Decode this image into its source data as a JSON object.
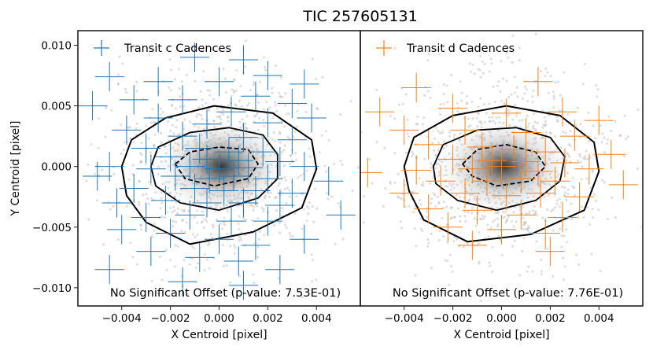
{
  "title": "TIC 257605131",
  "ylabel": "Y Centroid [pixel]",
  "chart_data": [
    {
      "type": "scatter",
      "panel": "left",
      "xlabel": "X Centroid [pixel]",
      "ylabel": "Y Centroid [pixel]",
      "xlim": [
        -0.0058,
        0.0058
      ],
      "ylim": [
        -0.0115,
        0.0112
      ],
      "x_ticks": [
        -0.004,
        -0.002,
        0.0,
        0.002,
        0.004
      ],
      "x_tick_labels": [
        "−0.004",
        "−0.002",
        "0.000",
        "0.002",
        "0.004"
      ],
      "y_ticks": [
        -0.01,
        -0.005,
        0.0,
        0.005,
        0.01
      ],
      "y_tick_labels": [
        "−0.010",
        "−0.005",
        "0.000",
        "0.005",
        "0.010"
      ],
      "legend": {
        "label": "Transit c Cadences",
        "color": "#1f77b4",
        "position": "top-left"
      },
      "annotation": "No Significant Offset (p-value: 7.53E-01)",
      "series_color": "#1f77b4",
      "contour_levels": [
        [
          [
            -0.004,
            0.0
          ],
          [
            -0.0036,
            0.0022
          ],
          [
            -0.0022,
            0.004
          ],
          [
            -0.0002,
            0.005
          ],
          [
            0.0022,
            0.0044
          ],
          [
            0.0038,
            0.0022
          ],
          [
            0.004,
            -0.0002
          ],
          [
            0.0034,
            -0.0034
          ],
          [
            0.0014,
            -0.0054
          ],
          [
            -0.0012,
            -0.0064
          ],
          [
            -0.003,
            -0.0046
          ],
          [
            -0.0038,
            -0.0024
          ]
        ],
        [
          [
            -0.0028,
            0.0
          ],
          [
            -0.0025,
            0.0016
          ],
          [
            -0.0012,
            0.0028
          ],
          [
            0.0004,
            0.0032
          ],
          [
            0.0018,
            0.0026
          ],
          [
            0.0024,
            0.001
          ],
          [
            0.0024,
            -0.001
          ],
          [
            0.0016,
            -0.0026
          ],
          [
            0.0,
            -0.0036
          ],
          [
            -0.0016,
            -0.003
          ],
          [
            -0.0026,
            -0.0016
          ]
        ],
        [
          [
            -0.0018,
            0.0002
          ],
          [
            -0.0012,
            0.0012
          ],
          [
            0.0,
            0.0016
          ],
          [
            0.0012,
            0.0014
          ],
          [
            0.0016,
            0.0002
          ],
          [
            0.0012,
            -0.001
          ],
          [
            -0.0002,
            -0.0016
          ],
          [
            -0.0014,
            -0.001
          ]
        ]
      ],
      "points": [
        {
          "x": -0.001,
          "y": 0.009,
          "ex": 0.0006,
          "ey": 0.0012
        },
        {
          "x": 0.001,
          "y": 0.0088,
          "ex": 0.0006,
          "ey": 0.0012
        },
        {
          "x": -0.0045,
          "y": 0.0074,
          "ex": 0.0006,
          "ey": 0.0012
        },
        {
          "x": 0.002,
          "y": 0.0075,
          "ex": 0.0006,
          "ey": 0.0012
        },
        {
          "x": -0.0025,
          "y": 0.007,
          "ex": 0.0006,
          "ey": 0.0012
        },
        {
          "x": 0.0,
          "y": 0.007,
          "ex": 0.0006,
          "ey": 0.0012
        },
        {
          "x": 0.0035,
          "y": 0.0068,
          "ex": 0.0006,
          "ey": 0.0012
        },
        {
          "x": -0.0052,
          "y": 0.005,
          "ex": 0.0006,
          "ey": 0.0012
        },
        {
          "x": -0.0035,
          "y": 0.0055,
          "ex": 0.0006,
          "ey": 0.0012
        },
        {
          "x": -0.0015,
          "y": 0.0055,
          "ex": 0.0006,
          "ey": 0.0012
        },
        {
          "x": 0.0015,
          "y": 0.0058,
          "ex": 0.0006,
          "ey": 0.0012
        },
        {
          "x": 0.003,
          "y": 0.0052,
          "ex": 0.0006,
          "ey": 0.0012
        },
        {
          "x": 0.0005,
          "y": 0.0045,
          "ex": 0.0006,
          "ey": 0.0012
        },
        {
          "x": -0.0025,
          "y": 0.004,
          "ex": 0.0006,
          "ey": 0.0012
        },
        {
          "x": -0.0005,
          "y": 0.0035,
          "ex": 0.0006,
          "ey": 0.0012
        },
        {
          "x": 0.002,
          "y": 0.0036,
          "ex": 0.0006,
          "ey": 0.0012
        },
        {
          "x": 0.0038,
          "y": 0.004,
          "ex": 0.0006,
          "ey": 0.0012
        },
        {
          "x": -0.0038,
          "y": 0.003,
          "ex": 0.0006,
          "ey": 0.0012
        },
        {
          "x": -0.0015,
          "y": 0.0025,
          "ex": 0.0006,
          "ey": 0.0012
        },
        {
          "x": 0.001,
          "y": 0.0024,
          "ex": 0.0006,
          "ey": 0.0012
        },
        {
          "x": 0.003,
          "y": 0.0022,
          "ex": 0.0006,
          "ey": 0.0012
        },
        {
          "x": -0.003,
          "y": 0.0015,
          "ex": 0.0006,
          "ey": 0.0012
        },
        {
          "x": -0.0008,
          "y": 0.0015,
          "ex": 0.0006,
          "ey": 0.0012
        },
        {
          "x": 0.0004,
          "y": 0.0012,
          "ex": 0.0006,
          "ey": 0.0012
        },
        {
          "x": 0.0018,
          "y": 0.0012,
          "ex": 0.0006,
          "ey": 0.0012
        },
        {
          "x": -0.002,
          "y": 0.0008,
          "ex": 0.0006,
          "ey": 0.0012
        },
        {
          "x": -0.0005,
          "y": 0.0006,
          "ex": 0.0006,
          "ey": 0.0012
        },
        {
          "x": 0.0008,
          "y": 0.0005,
          "ex": 0.0006,
          "ey": 0.0012
        },
        {
          "x": 0.0025,
          "y": 0.0004,
          "ex": 0.0006,
          "ey": 0.0012
        },
        {
          "x": -0.0045,
          "y": 0.0,
          "ex": 0.0006,
          "ey": 0.0012
        },
        {
          "x": -0.0028,
          "y": -0.0002,
          "ex": 0.0006,
          "ey": 0.0012
        },
        {
          "x": -0.0012,
          "y": 0.0,
          "ex": 0.0006,
          "ey": 0.0012
        },
        {
          "x": 0.0,
          "y": -0.0002,
          "ex": 0.0006,
          "ey": 0.0012
        },
        {
          "x": 0.0012,
          "y": -0.0001,
          "ex": 0.0006,
          "ey": 0.0012
        },
        {
          "x": 0.0035,
          "y": 0.0,
          "ex": 0.0006,
          "ey": 0.0012
        },
        {
          "x": -0.005,
          "y": -0.0008,
          "ex": 0.0006,
          "ey": 0.0012
        },
        {
          "x": -0.0018,
          "y": -0.0008,
          "ex": 0.0006,
          "ey": 0.0012
        },
        {
          "x": -0.0004,
          "y": -0.001,
          "ex": 0.0006,
          "ey": 0.0012
        },
        {
          "x": 0.0006,
          "y": -0.0008,
          "ex": 0.0006,
          "ey": 0.0012
        },
        {
          "x": 0.002,
          "y": -0.001,
          "ex": 0.0006,
          "ey": 0.0012
        },
        {
          "x": 0.0045,
          "y": -0.0012,
          "ex": 0.0006,
          "ey": 0.0012
        },
        {
          "x": -0.0035,
          "y": -0.0018,
          "ex": 0.0006,
          "ey": 0.0012
        },
        {
          "x": -0.001,
          "y": -0.0018,
          "ex": 0.0006,
          "ey": 0.0012
        },
        {
          "x": 0.0002,
          "y": -0.002,
          "ex": 0.0006,
          "ey": 0.0012
        },
        {
          "x": 0.0015,
          "y": -0.002,
          "ex": 0.0006,
          "ey": 0.0012
        },
        {
          "x": 0.003,
          "y": -0.0022,
          "ex": 0.0006,
          "ey": 0.0012
        },
        {
          "x": -0.0042,
          "y": -0.003,
          "ex": 0.0006,
          "ey": 0.0012
        },
        {
          "x": -0.0022,
          "y": -0.0028,
          "ex": 0.0006,
          "ey": 0.0012
        },
        {
          "x": -0.0005,
          "y": -0.003,
          "ex": 0.0006,
          "ey": 0.0012
        },
        {
          "x": 0.001,
          "y": -0.003,
          "ex": 0.0006,
          "ey": 0.0012
        },
        {
          "x": 0.0025,
          "y": -0.0032,
          "ex": 0.0006,
          "ey": 0.0012
        },
        {
          "x": 0.005,
          "y": -0.004,
          "ex": 0.0006,
          "ey": 0.0012
        },
        {
          "x": -0.003,
          "y": -0.0042,
          "ex": 0.0006,
          "ey": 0.0012
        },
        {
          "x": -0.0012,
          "y": -0.004,
          "ex": 0.0006,
          "ey": 0.0012
        },
        {
          "x": 0.0005,
          "y": -0.0045,
          "ex": 0.0006,
          "ey": 0.0012
        },
        {
          "x": 0.002,
          "y": -0.0045,
          "ex": 0.0006,
          "ey": 0.0012
        },
        {
          "x": -0.004,
          "y": -0.0052,
          "ex": 0.0006,
          "ey": 0.0012
        },
        {
          "x": -0.002,
          "y": -0.0055,
          "ex": 0.0006,
          "ey": 0.0012
        },
        {
          "x": 0.0,
          "y": -0.006,
          "ex": 0.0006,
          "ey": 0.0012
        },
        {
          "x": 0.0015,
          "y": -0.0065,
          "ex": 0.0006,
          "ey": 0.0012
        },
        {
          "x": 0.0035,
          "y": -0.006,
          "ex": 0.0006,
          "ey": 0.0012
        },
        {
          "x": -0.0028,
          "y": -0.007,
          "ex": 0.0006,
          "ey": 0.0012
        },
        {
          "x": -0.0008,
          "y": -0.0075,
          "ex": 0.0006,
          "ey": 0.0012
        },
        {
          "x": 0.0008,
          "y": -0.0078,
          "ex": 0.0006,
          "ey": 0.0012
        },
        {
          "x": -0.0045,
          "y": -0.0085,
          "ex": 0.0006,
          "ey": 0.0012
        },
        {
          "x": 0.0025,
          "y": -0.0085,
          "ex": 0.0006,
          "ey": 0.0012
        },
        {
          "x": -0.0015,
          "y": -0.0095,
          "ex": 0.0006,
          "ey": 0.0012
        },
        {
          "x": 0.001,
          "y": -0.0098,
          "ex": 0.0006,
          "ey": 0.0012
        }
      ]
    },
    {
      "type": "scatter",
      "panel": "right",
      "xlabel": "X Centroid [pixel]",
      "xlim": [
        -0.0058,
        0.0058
      ],
      "ylim": [
        -0.0115,
        0.0112
      ],
      "x_ticks": [
        -0.004,
        -0.002,
        0.0,
        0.002,
        0.004
      ],
      "x_tick_labels": [
        "−0.004",
        "−0.002",
        "0.000",
        "0.002",
        "0.004"
      ],
      "legend": {
        "label": "Transit d Cadences",
        "color": "#ff7f0e",
        "position": "top-left"
      },
      "annotation": "No Significant Offset (p-value: 7.76E-01)",
      "series_color": "#ff7f0e",
      "contour_levels": [
        [
          [
            -0.004,
            0.0
          ],
          [
            -0.0036,
            0.0024
          ],
          [
            -0.002,
            0.0042
          ],
          [
            0.0002,
            0.005
          ],
          [
            0.0024,
            0.0042
          ],
          [
            0.0038,
            0.002
          ],
          [
            0.004,
            -0.0004
          ],
          [
            0.0034,
            -0.0036
          ],
          [
            0.0012,
            -0.0056
          ],
          [
            -0.0014,
            -0.0062
          ],
          [
            -0.0032,
            -0.0044
          ],
          [
            -0.0038,
            -0.002
          ]
        ],
        [
          [
            -0.0028,
            0.0
          ],
          [
            -0.0024,
            0.0018
          ],
          [
            -0.001,
            0.003
          ],
          [
            0.0006,
            0.0032
          ],
          [
            0.002,
            0.0024
          ],
          [
            0.0026,
            0.0008
          ],
          [
            0.0024,
            -0.0012
          ],
          [
            0.0014,
            -0.0028
          ],
          [
            -0.0002,
            -0.0036
          ],
          [
            -0.0018,
            -0.0028
          ],
          [
            -0.0027,
            -0.0014
          ]
        ],
        [
          [
            -0.0016,
            0.0002
          ],
          [
            -0.001,
            0.0014
          ],
          [
            0.0002,
            0.0018
          ],
          [
            0.0014,
            0.0012
          ],
          [
            0.0018,
            0.0
          ],
          [
            0.0012,
            -0.0012
          ],
          [
            -0.0002,
            -0.0016
          ],
          [
            -0.0012,
            -0.0008
          ]
        ]
      ],
      "points": [
        {
          "x": 0.0015,
          "y": 0.007,
          "ex": 0.0006,
          "ey": 0.0012
        },
        {
          "x": -0.0035,
          "y": 0.0065,
          "ex": 0.0006,
          "ey": 0.0012
        },
        {
          "x": -0.005,
          "y": 0.0045,
          "ex": 0.0006,
          "ey": 0.0012
        },
        {
          "x": -0.002,
          "y": 0.0048,
          "ex": 0.0006,
          "ey": 0.0012
        },
        {
          "x": 0.0002,
          "y": 0.0044,
          "ex": 0.0006,
          "ey": 0.0012
        },
        {
          "x": 0.0025,
          "y": 0.0045,
          "ex": 0.0006,
          "ey": 0.0012
        },
        {
          "x": 0.004,
          "y": 0.0038,
          "ex": 0.0006,
          "ey": 0.0012
        },
        {
          "x": -0.004,
          "y": 0.003,
          "ex": 0.0006,
          "ey": 0.0012
        },
        {
          "x": -0.0015,
          "y": 0.003,
          "ex": 0.0006,
          "ey": 0.0012
        },
        {
          "x": 0.001,
          "y": 0.0028,
          "ex": 0.0006,
          "ey": 0.0012
        },
        {
          "x": 0.003,
          "y": 0.0025,
          "ex": 0.0006,
          "ey": 0.0012
        },
        {
          "x": -0.003,
          "y": 0.0018,
          "ex": 0.0006,
          "ey": 0.0012
        },
        {
          "x": -0.0008,
          "y": 0.0016,
          "ex": 0.0006,
          "ey": 0.0012
        },
        {
          "x": 0.0005,
          "y": 0.0014,
          "ex": 0.0006,
          "ey": 0.0012
        },
        {
          "x": 0.0018,
          "y": 0.0012,
          "ex": 0.0006,
          "ey": 0.0012
        },
        {
          "x": 0.0045,
          "y": 0.001,
          "ex": 0.0006,
          "ey": 0.0012
        },
        {
          "x": -0.002,
          "y": 0.0006,
          "ex": 0.0006,
          "ey": 0.0012
        },
        {
          "x": -0.0004,
          "y": 0.0005,
          "ex": 0.0006,
          "ey": 0.0012
        },
        {
          "x": 0.001,
          "y": 0.0004,
          "ex": 0.0006,
          "ey": 0.0012
        },
        {
          "x": 0.0026,
          "y": 0.0003,
          "ex": 0.0006,
          "ey": 0.0012
        },
        {
          "x": -0.0055,
          "y": -0.0005,
          "ex": 0.0006,
          "ey": 0.0012
        },
        {
          "x": -0.0035,
          "y": -0.0003,
          "ex": 0.0006,
          "ey": 0.0012
        },
        {
          "x": -0.0012,
          "y": -0.0002,
          "ex": 0.0006,
          "ey": 0.0012
        },
        {
          "x": 0.0,
          "y": 0.0,
          "ex": 0.0006,
          "ey": 0.0012
        },
        {
          "x": 0.0015,
          "y": -0.0004,
          "ex": 0.0006,
          "ey": 0.0012
        },
        {
          "x": 0.0036,
          "y": -0.0002,
          "ex": 0.0006,
          "ey": 0.0012
        },
        {
          "x": -0.0025,
          "y": -0.0012,
          "ex": 0.0006,
          "ey": 0.0012
        },
        {
          "x": -0.0006,
          "y": -0.0012,
          "ex": 0.0006,
          "ey": 0.0012
        },
        {
          "x": 0.0008,
          "y": -0.001,
          "ex": 0.0006,
          "ey": 0.0012
        },
        {
          "x": 0.0022,
          "y": -0.0012,
          "ex": 0.0006,
          "ey": 0.0012
        },
        {
          "x": 0.005,
          "y": -0.0015,
          "ex": 0.0006,
          "ey": 0.0012
        },
        {
          "x": -0.004,
          "y": -0.0022,
          "ex": 0.0006,
          "ey": 0.0012
        },
        {
          "x": -0.0015,
          "y": -0.0022,
          "ex": 0.0006,
          "ey": 0.0012
        },
        {
          "x": 0.0002,
          "y": -0.0024,
          "ex": 0.0006,
          "ey": 0.0012
        },
        {
          "x": 0.0016,
          "y": -0.0022,
          "ex": 0.0006,
          "ey": 0.0012
        },
        {
          "x": 0.0032,
          "y": -0.0025,
          "ex": 0.0006,
          "ey": 0.0012
        },
        {
          "x": -0.003,
          "y": -0.0035,
          "ex": 0.0006,
          "ey": 0.0012
        },
        {
          "x": -0.001,
          "y": -0.0036,
          "ex": 0.0006,
          "ey": 0.0012
        },
        {
          "x": 0.0008,
          "y": -0.004,
          "ex": 0.0006,
          "ey": 0.0012
        },
        {
          "x": 0.0025,
          "y": -0.0042,
          "ex": 0.0006,
          "ey": 0.0012
        },
        {
          "x": -0.0022,
          "y": -0.005,
          "ex": 0.0006,
          "ey": 0.0012
        },
        {
          "x": 0.0,
          "y": -0.0052,
          "ex": 0.0006,
          "ey": 0.0012
        },
        {
          "x": 0.0018,
          "y": -0.0055,
          "ex": 0.0006,
          "ey": 0.0012
        },
        {
          "x": -0.0012,
          "y": -0.0065,
          "ex": 0.0006,
          "ey": 0.0012
        },
        {
          "x": 0.002,
          "y": -0.007,
          "ex": 0.0006,
          "ey": 0.0012
        }
      ]
    }
  ]
}
